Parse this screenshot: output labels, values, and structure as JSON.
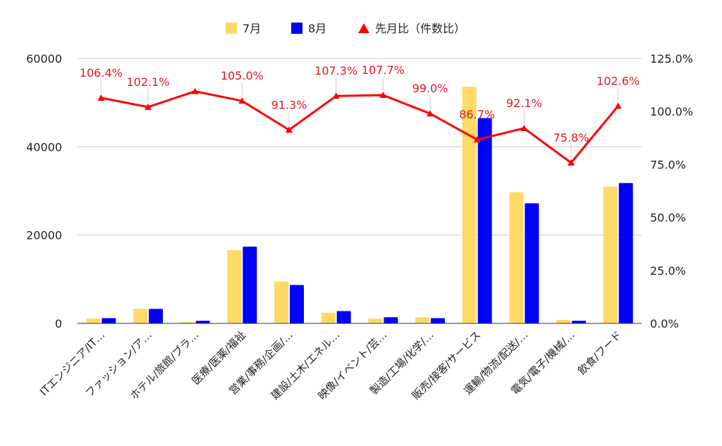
{
  "chart_data": {
    "type": "bar",
    "legend": {
      "position": "top"
    },
    "colors": {
      "july": "#ffd966",
      "august": "#0000ff",
      "ratio": "#ff0000"
    },
    "series": [
      {
        "name": "7月",
        "type": "bar",
        "values": [
          1100,
          3300,
          300,
          16600,
          9500,
          2400,
          1100,
          1400,
          53600,
          29700,
          800,
          31000
        ]
      },
      {
        "name": "8月",
        "type": "bar",
        "values": [
          1200,
          3300,
          600,
          17400,
          8700,
          2800,
          1400,
          1200,
          46500,
          27200,
          600,
          31800
        ]
      },
      {
        "name": "先月比（件数比）",
        "type": "line",
        "axis": "right",
        "values": [
          106.4,
          102.1,
          109.5,
          105.0,
          91.3,
          107.3,
          107.7,
          99.0,
          86.7,
          92.1,
          75.8,
          102.6
        ]
      }
    ],
    "line_labels": [
      "106.4%",
      "102.1%",
      "",
      "105.0%",
      "91.3%",
      "107.3%",
      "107.7%",
      "99.0%",
      "86.7%",
      "92.1%",
      "75.8%",
      "102.6%"
    ],
    "categories": [
      "ITエンジニア/IT…",
      "ファッション/ア…",
      "ホテル/旅館/ブラ…",
      "医療/医薬/福祉",
      "営業/事務/企画/…",
      "建設/土木/エネル…",
      "映像/イベント/芸…",
      "製造/工場/化学/…",
      "販売/接客/サービス",
      "運輸/物流/配送/…",
      "電気/電子/機械/…",
      "飲食/フード"
    ],
    "y_left": {
      "min": 0,
      "max": 60000,
      "ticks": [
        "0",
        "20000",
        "40000",
        "60000"
      ]
    },
    "y_right": {
      "min": 0,
      "max": 125,
      "ticks": [
        "0.0%",
        "25.0%",
        "50.0%",
        "75.0%",
        "100.0%",
        "125.0%"
      ]
    },
    "grid": true
  }
}
